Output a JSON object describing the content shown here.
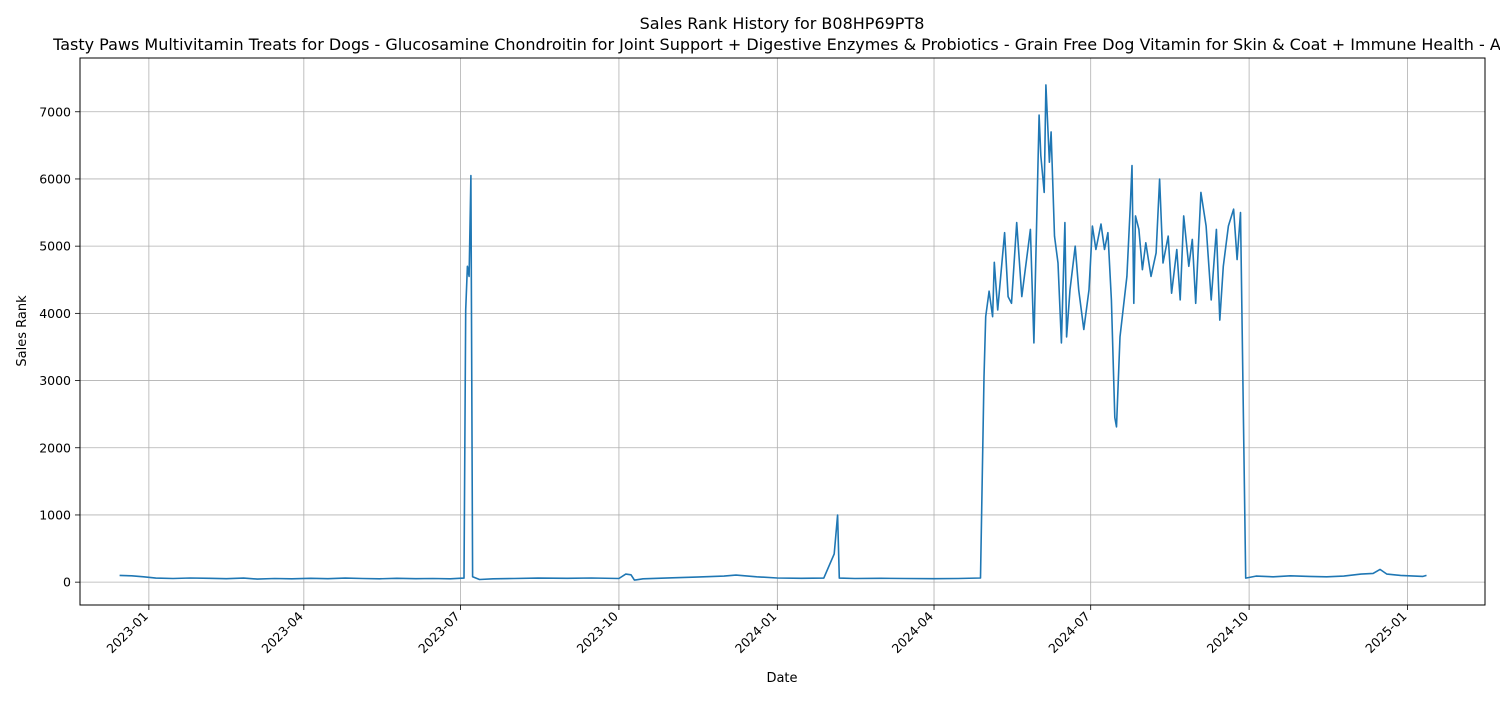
{
  "chart_data": {
    "type": "line",
    "title": "Sales Rank History for B08HP69PT8",
    "subtitle": "Tasty Paws Multivitamin Treats for Dogs - Glucosamine Chondroitin for Joint Support + Digestive Enzymes & Probiotics - Grain Free Dog Vitamin for Skin & Coat + Immune Health - AE",
    "xlabel": "Date",
    "ylabel": "Sales Rank",
    "x_range": [
      "2022-11-22",
      "2025-02-15"
    ],
    "ylim": [
      -340,
      7800
    ],
    "x_ticks": [
      "2023-01",
      "2023-04",
      "2023-07",
      "2023-10",
      "2024-01",
      "2024-04",
      "2024-07",
      "2024-10",
      "2025-01"
    ],
    "y_ticks": [
      0,
      1000,
      2000,
      3000,
      4000,
      5000,
      6000,
      7000
    ],
    "grid": true,
    "color": "#1f77b4",
    "series": [
      {
        "points": [
          [
            "2022-12-15",
            100
          ],
          [
            "2022-12-22",
            95
          ],
          [
            "2022-12-29",
            80
          ],
          [
            "2023-01-05",
            60
          ],
          [
            "2023-01-15",
            55
          ],
          [
            "2023-01-25",
            62
          ],
          [
            "2023-02-05",
            58
          ],
          [
            "2023-02-15",
            52
          ],
          [
            "2023-02-25",
            60
          ],
          [
            "2023-03-05",
            45
          ],
          [
            "2023-03-15",
            55
          ],
          [
            "2023-03-25",
            50
          ],
          [
            "2023-04-05",
            58
          ],
          [
            "2023-04-15",
            52
          ],
          [
            "2023-04-25",
            60
          ],
          [
            "2023-05-05",
            55
          ],
          [
            "2023-05-15",
            50
          ],
          [
            "2023-05-25",
            58
          ],
          [
            "2023-06-05",
            52
          ],
          [
            "2023-06-15",
            55
          ],
          [
            "2023-06-25",
            50
          ],
          [
            "2023-07-03",
            60
          ],
          [
            "2023-07-04",
            4050
          ],
          [
            "2023-07-05",
            4700
          ],
          [
            "2023-07-06",
            4550
          ],
          [
            "2023-07-07",
            6050
          ],
          [
            "2023-07-08",
            80
          ],
          [
            "2023-07-12",
            40
          ],
          [
            "2023-07-20",
            50
          ],
          [
            "2023-08-01",
            55
          ],
          [
            "2023-08-15",
            60
          ],
          [
            "2023-09-01",
            58
          ],
          [
            "2023-09-15",
            62
          ],
          [
            "2023-10-01",
            55
          ],
          [
            "2023-10-05",
            120
          ],
          [
            "2023-10-08",
            110
          ],
          [
            "2023-10-10",
            30
          ],
          [
            "2023-10-15",
            50
          ],
          [
            "2023-11-01",
            65
          ],
          [
            "2023-11-15",
            75
          ],
          [
            "2023-12-01",
            90
          ],
          [
            "2023-12-08",
            105
          ],
          [
            "2023-12-20",
            80
          ],
          [
            "2024-01-01",
            62
          ],
          [
            "2024-01-15",
            58
          ],
          [
            "2024-01-28",
            60
          ],
          [
            "2024-02-03",
            420
          ],
          [
            "2024-02-05",
            1000
          ],
          [
            "2024-02-06",
            60
          ],
          [
            "2024-02-15",
            55
          ],
          [
            "2024-03-01",
            58
          ],
          [
            "2024-03-15",
            55
          ],
          [
            "2024-04-01",
            52
          ],
          [
            "2024-04-15",
            55
          ],
          [
            "2024-04-28",
            62
          ],
          [
            "2024-04-30",
            3050
          ],
          [
            "2024-05-01",
            3950
          ],
          [
            "2024-05-03",
            4330
          ],
          [
            "2024-05-05",
            3950
          ],
          [
            "2024-05-06",
            4760
          ],
          [
            "2024-05-08",
            4050
          ],
          [
            "2024-05-12",
            5200
          ],
          [
            "2024-05-14",
            4250
          ],
          [
            "2024-05-16",
            4150
          ],
          [
            "2024-05-19",
            5350
          ],
          [
            "2024-05-22",
            4250
          ],
          [
            "2024-05-27",
            5250
          ],
          [
            "2024-05-29",
            3560
          ],
          [
            "2024-06-01",
            6950
          ],
          [
            "2024-06-02",
            6350
          ],
          [
            "2024-06-04",
            5800
          ],
          [
            "2024-06-05",
            7400
          ],
          [
            "2024-06-07",
            6250
          ],
          [
            "2024-06-08",
            6700
          ],
          [
            "2024-06-10",
            5150
          ],
          [
            "2024-06-12",
            4750
          ],
          [
            "2024-06-14",
            3560
          ],
          [
            "2024-06-16",
            5350
          ],
          [
            "2024-06-17",
            3650
          ],
          [
            "2024-06-19",
            4350
          ],
          [
            "2024-06-22",
            5000
          ],
          [
            "2024-06-24",
            4350
          ],
          [
            "2024-06-27",
            3760
          ],
          [
            "2024-06-30",
            4350
          ],
          [
            "2024-07-02",
            5300
          ],
          [
            "2024-07-04",
            4950
          ],
          [
            "2024-07-07",
            5330
          ],
          [
            "2024-07-09",
            4950
          ],
          [
            "2024-07-11",
            5200
          ],
          [
            "2024-07-13",
            4200
          ],
          [
            "2024-07-15",
            2450
          ],
          [
            "2024-07-16",
            2310
          ],
          [
            "2024-07-18",
            3650
          ],
          [
            "2024-07-22",
            4550
          ],
          [
            "2024-07-24",
            5600
          ],
          [
            "2024-07-25",
            6200
          ],
          [
            "2024-07-26",
            4150
          ],
          [
            "2024-07-27",
            5450
          ],
          [
            "2024-07-29",
            5250
          ],
          [
            "2024-07-31",
            4650
          ],
          [
            "2024-08-02",
            5050
          ],
          [
            "2024-08-05",
            4550
          ],
          [
            "2024-08-08",
            4900
          ],
          [
            "2024-08-10",
            6000
          ],
          [
            "2024-08-12",
            4750
          ],
          [
            "2024-08-15",
            5150
          ],
          [
            "2024-08-17",
            4300
          ],
          [
            "2024-08-20",
            4950
          ],
          [
            "2024-08-22",
            4200
          ],
          [
            "2024-08-24",
            5450
          ],
          [
            "2024-08-27",
            4700
          ],
          [
            "2024-08-29",
            5100
          ],
          [
            "2024-08-31",
            4150
          ],
          [
            "2024-09-03",
            5800
          ],
          [
            "2024-09-06",
            5300
          ],
          [
            "2024-09-09",
            4200
          ],
          [
            "2024-09-12",
            5250
          ],
          [
            "2024-09-14",
            3900
          ],
          [
            "2024-09-16",
            4700
          ],
          [
            "2024-09-19",
            5300
          ],
          [
            "2024-09-22",
            5550
          ],
          [
            "2024-09-24",
            4800
          ],
          [
            "2024-09-26",
            5500
          ],
          [
            "2024-09-29",
            60
          ],
          [
            "2024-10-05",
            90
          ],
          [
            "2024-10-15",
            80
          ],
          [
            "2024-10-25",
            95
          ],
          [
            "2024-11-05",
            85
          ],
          [
            "2024-11-15",
            80
          ],
          [
            "2024-11-25",
            90
          ],
          [
            "2024-12-05",
            120
          ],
          [
            "2024-12-12",
            130
          ],
          [
            "2024-12-16",
            190
          ],
          [
            "2024-12-20",
            120
          ],
          [
            "2024-12-28",
            100
          ],
          [
            "2025-01-05",
            90
          ],
          [
            "2025-01-10",
            85
          ],
          [
            "2025-01-12",
            100
          ]
        ]
      }
    ]
  }
}
